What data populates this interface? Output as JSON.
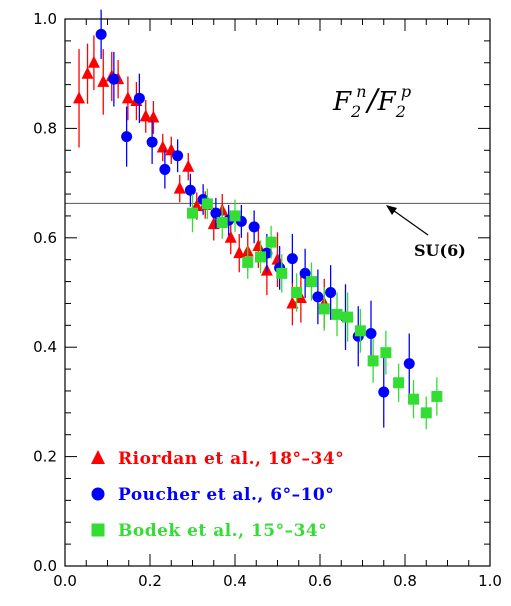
{
  "chart_data": {
    "type": "scatter",
    "title": "",
    "xlabel": "",
    "ylabel": "",
    "xlim": [
      0.0,
      1.0
    ],
    "ylim": [
      0.0,
      1.0
    ],
    "x_ticks": [
      "0.0",
      "0.2",
      "0.4",
      "0.6",
      "0.8",
      "1.0"
    ],
    "y_ticks": [
      "0.0",
      "0.2",
      "0.4",
      "0.6",
      "0.8",
      "1.0"
    ],
    "grid": false,
    "legend_position": "bottom-left",
    "annotations": {
      "ratio": {
        "base_n": "F",
        "sub_n": "2",
        "sup_n": "n",
        "slash": "/",
        "base_p": "F",
        "sub_p": "2",
        "sup_p": "p"
      },
      "su6_label": "SU(6)",
      "su6_value": 0.663
    },
    "series": [
      {
        "name": "Riordan et al., 18°–34°",
        "color": "#ff0000",
        "marker": "triangle",
        "points": [
          {
            "x": 0.033,
            "y": 0.855,
            "err": 0.09
          },
          {
            "x": 0.053,
            "y": 0.9,
            "err": 0.055
          },
          {
            "x": 0.068,
            "y": 0.92,
            "err": 0.05
          },
          {
            "x": 0.09,
            "y": 0.885,
            "err": 0.06
          },
          {
            "x": 0.11,
            "y": 0.895,
            "err": 0.045
          },
          {
            "x": 0.125,
            "y": 0.89,
            "err": 0.035
          },
          {
            "x": 0.148,
            "y": 0.855,
            "err": 0.04
          },
          {
            "x": 0.168,
            "y": 0.85,
            "err": 0.035
          },
          {
            "x": 0.19,
            "y": 0.822,
            "err": 0.03
          },
          {
            "x": 0.208,
            "y": 0.82,
            "err": 0.03
          },
          {
            "x": 0.23,
            "y": 0.765,
            "err": 0.025
          },
          {
            "x": 0.25,
            "y": 0.76,
            "err": 0.025
          },
          {
            "x": 0.27,
            "y": 0.69,
            "err": 0.025
          },
          {
            "x": 0.29,
            "y": 0.73,
            "err": 0.025
          },
          {
            "x": 0.31,
            "y": 0.658,
            "err": 0.025
          },
          {
            "x": 0.33,
            "y": 0.66,
            "err": 0.025
          },
          {
            "x": 0.35,
            "y": 0.625,
            "err": 0.03
          },
          {
            "x": 0.37,
            "y": 0.65,
            "err": 0.03
          },
          {
            "x": 0.39,
            "y": 0.6,
            "err": 0.03
          },
          {
            "x": 0.41,
            "y": 0.572,
            "err": 0.035
          },
          {
            "x": 0.43,
            "y": 0.575,
            "err": 0.035
          },
          {
            "x": 0.455,
            "y": 0.585,
            "err": 0.04
          },
          {
            "x": 0.475,
            "y": 0.54,
            "err": 0.045
          },
          {
            "x": 0.5,
            "y": 0.56,
            "err": 0.05
          },
          {
            "x": 0.535,
            "y": 0.48,
            "err": 0.04
          },
          {
            "x": 0.555,
            "y": 0.49,
            "err": 0.045
          },
          {
            "x": 0.61,
            "y": 0.48,
            "err": 0.045
          }
        ]
      },
      {
        "name": "Poucher et al., 6°–10°",
        "color": "#0000ff",
        "marker": "circle",
        "points": [
          {
            "x": 0.085,
            "y": 0.972,
            "err": 0.045
          },
          {
            "x": 0.115,
            "y": 0.89,
            "err": 0.05
          },
          {
            "x": 0.145,
            "y": 0.785,
            "err": 0.055
          },
          {
            "x": 0.175,
            "y": 0.855,
            "err": 0.045
          },
          {
            "x": 0.205,
            "y": 0.775,
            "err": 0.04
          },
          {
            "x": 0.235,
            "y": 0.725,
            "err": 0.035
          },
          {
            "x": 0.265,
            "y": 0.75,
            "err": 0.03
          },
          {
            "x": 0.295,
            "y": 0.687,
            "err": 0.03
          },
          {
            "x": 0.325,
            "y": 0.67,
            "err": 0.028
          },
          {
            "x": 0.355,
            "y": 0.645,
            "err": 0.028
          },
          {
            "x": 0.385,
            "y": 0.632,
            "err": 0.028
          },
          {
            "x": 0.415,
            "y": 0.63,
            "err": 0.03
          },
          {
            "x": 0.445,
            "y": 0.62,
            "err": 0.03
          },
          {
            "x": 0.475,
            "y": 0.572,
            "err": 0.035
          },
          {
            "x": 0.505,
            "y": 0.545,
            "err": 0.04
          },
          {
            "x": 0.535,
            "y": 0.562,
            "err": 0.045
          },
          {
            "x": 0.565,
            "y": 0.535,
            "err": 0.045
          },
          {
            "x": 0.595,
            "y": 0.492,
            "err": 0.05
          },
          {
            "x": 0.625,
            "y": 0.5,
            "err": 0.05
          },
          {
            "x": 0.66,
            "y": 0.455,
            "err": 0.06
          },
          {
            "x": 0.69,
            "y": 0.42,
            "err": 0.055
          },
          {
            "x": 0.72,
            "y": 0.425,
            "err": 0.06
          },
          {
            "x": 0.75,
            "y": 0.318,
            "err": 0.065
          },
          {
            "x": 0.81,
            "y": 0.37,
            "err": 0.055
          }
        ]
      },
      {
        "name": "Bodek et al., 15°–34°",
        "color": "#33dd33",
        "marker": "square",
        "points": [
          {
            "x": 0.3,
            "y": 0.645,
            "err": 0.035
          },
          {
            "x": 0.335,
            "y": 0.662,
            "err": 0.028
          },
          {
            "x": 0.37,
            "y": 0.628,
            "err": 0.03
          },
          {
            "x": 0.4,
            "y": 0.64,
            "err": 0.03
          },
          {
            "x": 0.43,
            "y": 0.555,
            "err": 0.03
          },
          {
            "x": 0.46,
            "y": 0.565,
            "err": 0.03
          },
          {
            "x": 0.485,
            "y": 0.592,
            "err": 0.03
          },
          {
            "x": 0.51,
            "y": 0.535,
            "err": 0.035
          },
          {
            "x": 0.545,
            "y": 0.5,
            "err": 0.035
          },
          {
            "x": 0.58,
            "y": 0.52,
            "err": 0.035
          },
          {
            "x": 0.61,
            "y": 0.47,
            "err": 0.04
          },
          {
            "x": 0.64,
            "y": 0.46,
            "err": 0.04
          },
          {
            "x": 0.665,
            "y": 0.455,
            "err": 0.045
          },
          {
            "x": 0.695,
            "y": 0.43,
            "err": 0.04
          },
          {
            "x": 0.725,
            "y": 0.375,
            "err": 0.04
          },
          {
            "x": 0.755,
            "y": 0.39,
            "err": 0.04
          },
          {
            "x": 0.785,
            "y": 0.335,
            "err": 0.035
          },
          {
            "x": 0.82,
            "y": 0.305,
            "err": 0.035
          },
          {
            "x": 0.85,
            "y": 0.28,
            "err": 0.03
          },
          {
            "x": 0.875,
            "y": 0.31,
            "err": 0.035
          }
        ]
      }
    ]
  }
}
